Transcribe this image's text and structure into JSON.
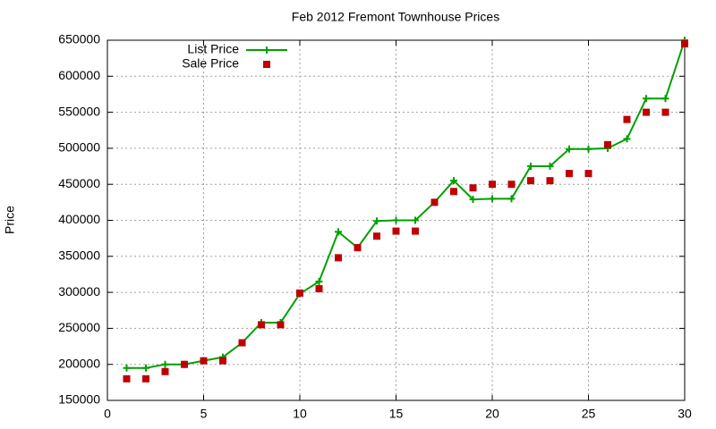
{
  "chart_data": {
    "type": "line",
    "title": "Feb 2012 Fremont Townhouse Prices",
    "y_label": "Price",
    "x": [
      1,
      2,
      3,
      4,
      5,
      6,
      7,
      8,
      9,
      10,
      11,
      12,
      13,
      14,
      15,
      16,
      17,
      18,
      19,
      20,
      21,
      22,
      23,
      24,
      25,
      26,
      27,
      28,
      29,
      30
    ],
    "series": [
      {
        "name": "List Price",
        "color": "#00a000",
        "line": true,
        "marker": "plus",
        "values": [
          195000,
          195000,
          200000,
          200000,
          205000,
          210000,
          230000,
          258000,
          258000,
          298000,
          315000,
          384000,
          362000,
          399000,
          400000,
          400000,
          425000,
          455000,
          429000,
          430000,
          430000,
          475000,
          475000,
          499000,
          499000,
          500000,
          513000,
          569000,
          569000,
          650000
        ]
      },
      {
        "name": "Sale Price",
        "color": "#c00000",
        "line": false,
        "marker": "square",
        "values": [
          180000,
          180000,
          190000,
          200000,
          205000,
          205000,
          230000,
          255000,
          255000,
          299000,
          305000,
          348000,
          362000,
          378000,
          385000,
          385000,
          425000,
          440000,
          445000,
          450000,
          450000,
          455000,
          455000,
          465000,
          465000,
          505000,
          540000,
          550000,
          550000,
          645000
        ]
      }
    ],
    "xlim": [
      0,
      30
    ],
    "xticks": [
      0,
      5,
      10,
      15,
      20,
      25,
      30
    ],
    "ylim": [
      150000,
      650000
    ],
    "yticks": [
      150000,
      200000,
      250000,
      300000,
      350000,
      400000,
      450000,
      500000,
      550000,
      600000,
      650000
    ],
    "grid": true,
    "legend": "top-left"
  }
}
